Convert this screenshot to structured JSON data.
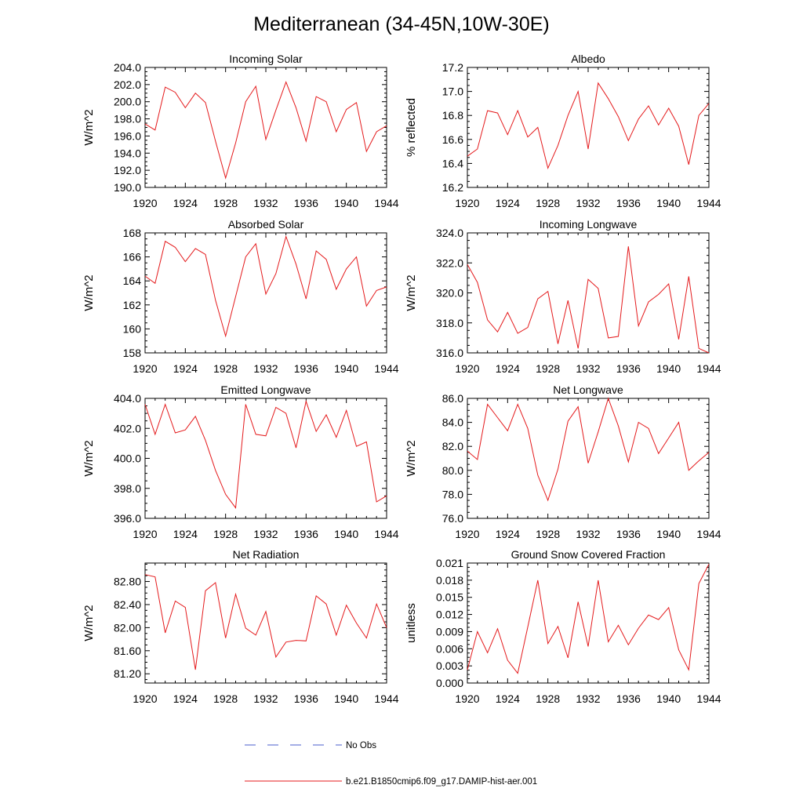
{
  "title": "Mediterranean (34-45N,10W-30E)",
  "legend": {
    "entries": [
      {
        "label": "No Obs",
        "color": "#4a5ccc",
        "dash": true
      },
      {
        "label": "b.e21.B1850cmip6.f09_g17.DAMIP-hist-aer.001",
        "color": "#e41a1c",
        "dash": false
      }
    ]
  },
  "chart_data": [
    {
      "type": "line",
      "title": "Incoming Solar",
      "ylabel": "W/m^2",
      "x": [
        1920,
        1921,
        1922,
        1923,
        1924,
        1925,
        1926,
        1927,
        1928,
        1929,
        1930,
        1931,
        1932,
        1933,
        1934,
        1935,
        1936,
        1937,
        1938,
        1939,
        1940,
        1941,
        1942,
        1943,
        1944
      ],
      "xlim": [
        1920,
        1944
      ],
      "xticks": [
        "1920",
        "1924",
        "1928",
        "1932",
        "1936",
        "1940",
        "1944"
      ],
      "ylim": [
        190.0,
        204.0
      ],
      "yticks": [
        "190.0",
        "192.0",
        "194.0",
        "196.0",
        "198.0",
        "200.0",
        "202.0",
        "204.0"
      ],
      "series": [
        {
          "color": "#e41a1c",
          "values": [
            197.4,
            196.7,
            201.7,
            201.1,
            199.3,
            201.0,
            199.9,
            195.4,
            191.1,
            195.2,
            200.0,
            201.8,
            195.6,
            199.0,
            202.3,
            199.3,
            195.4,
            200.6,
            200.0,
            196.5,
            199.1,
            199.9,
            194.2,
            196.5,
            197.2
          ]
        }
      ]
    },
    {
      "type": "line",
      "title": "Albedo",
      "ylabel": "% reflected",
      "x": [
        1920,
        1921,
        1922,
        1923,
        1924,
        1925,
        1926,
        1927,
        1928,
        1929,
        1930,
        1931,
        1932,
        1933,
        1934,
        1935,
        1936,
        1937,
        1938,
        1939,
        1940,
        1941,
        1942,
        1943,
        1944
      ],
      "xlim": [
        1920,
        1944
      ],
      "xticks": [
        "1920",
        "1924",
        "1928",
        "1932",
        "1936",
        "1940",
        "1944"
      ],
      "ylim": [
        16.2,
        17.2
      ],
      "yticks": [
        "16.2",
        "16.4",
        "16.6",
        "16.8",
        "17.0",
        "17.2"
      ],
      "series": [
        {
          "color": "#e41a1c",
          "values": [
            16.46,
            16.52,
            16.84,
            16.82,
            16.64,
            16.84,
            16.62,
            16.7,
            16.36,
            16.55,
            16.8,
            17.0,
            16.52,
            17.07,
            16.94,
            16.79,
            16.59,
            16.77,
            16.88,
            16.72,
            16.86,
            16.71,
            16.39,
            16.8,
            16.9
          ]
        }
      ]
    },
    {
      "type": "line",
      "title": "Absorbed Solar",
      "ylabel": "W/m^2",
      "x": [
        1920,
        1921,
        1922,
        1923,
        1924,
        1925,
        1926,
        1927,
        1928,
        1929,
        1930,
        1931,
        1932,
        1933,
        1934,
        1935,
        1936,
        1937,
        1938,
        1939,
        1940,
        1941,
        1942,
        1943,
        1944
      ],
      "xlim": [
        1920,
        1944
      ],
      "xticks": [
        "1920",
        "1924",
        "1928",
        "1932",
        "1936",
        "1940",
        "1944"
      ],
      "ylim": [
        158,
        168
      ],
      "yticks": [
        "158",
        "160",
        "162",
        "164",
        "166",
        "168"
      ],
      "series": [
        {
          "color": "#e41a1c",
          "values": [
            164.4,
            163.8,
            167.3,
            166.8,
            165.6,
            166.7,
            166.2,
            162.4,
            159.4,
            162.7,
            166.0,
            167.1,
            162.9,
            164.6,
            167.7,
            165.4,
            162.5,
            166.5,
            165.8,
            163.3,
            165.0,
            166.0,
            161.9,
            163.2,
            163.5
          ]
        }
      ]
    },
    {
      "type": "line",
      "title": "Incoming Longwave",
      "ylabel": "W/m^2",
      "x": [
        1920,
        1921,
        1922,
        1923,
        1924,
        1925,
        1926,
        1927,
        1928,
        1929,
        1930,
        1931,
        1932,
        1933,
        1934,
        1935,
        1936,
        1937,
        1938,
        1939,
        1940,
        1941,
        1942,
        1943,
        1944
      ],
      "xlim": [
        1920,
        1944
      ],
      "xticks": [
        "1920",
        "1924",
        "1928",
        "1932",
        "1936",
        "1940",
        "1944"
      ],
      "ylim": [
        316.0,
        324.0
      ],
      "yticks": [
        "316.0",
        "318.0",
        "320.0",
        "322.0",
        "324.0"
      ],
      "series": [
        {
          "color": "#e41a1c",
          "values": [
            321.9,
            320.7,
            318.2,
            317.4,
            318.7,
            317.3,
            317.7,
            319.6,
            320.1,
            316.6,
            319.5,
            316.3,
            320.9,
            320.3,
            317.0,
            317.1,
            323.1,
            317.8,
            319.4,
            319.9,
            320.6,
            316.9,
            321.1,
            316.3,
            316.0
          ]
        }
      ]
    },
    {
      "type": "line",
      "title": "Emitted Longwave",
      "ylabel": "W/m^2",
      "x": [
        1920,
        1921,
        1922,
        1923,
        1924,
        1925,
        1926,
        1927,
        1928,
        1929,
        1930,
        1931,
        1932,
        1933,
        1934,
        1935,
        1936,
        1937,
        1938,
        1939,
        1940,
        1941,
        1942,
        1943,
        1944
      ],
      "xlim": [
        1920,
        1944
      ],
      "xticks": [
        "1920",
        "1924",
        "1928",
        "1932",
        "1936",
        "1940",
        "1944"
      ],
      "ylim": [
        396.0,
        404.0
      ],
      "yticks": [
        "396.0",
        "398.0",
        "400.0",
        "402.0",
        "404.0"
      ],
      "series": [
        {
          "color": "#e41a1c",
          "values": [
            403.6,
            401.6,
            403.6,
            401.7,
            401.9,
            402.8,
            401.2,
            399.2,
            397.6,
            396.7,
            403.6,
            401.6,
            401.5,
            403.4,
            403.0,
            400.7,
            403.8,
            401.8,
            402.9,
            401.4,
            403.2,
            400.8,
            401.1,
            397.1,
            397.5
          ]
        }
      ]
    },
    {
      "type": "line",
      "title": "Net Longwave",
      "ylabel": "W/m^2",
      "x": [
        1920,
        1921,
        1922,
        1923,
        1924,
        1925,
        1926,
        1927,
        1928,
        1929,
        1930,
        1931,
        1932,
        1933,
        1934,
        1935,
        1936,
        1937,
        1938,
        1939,
        1940,
        1941,
        1942,
        1943,
        1944
      ],
      "xlim": [
        1920,
        1944
      ],
      "xticks": [
        "1920",
        "1924",
        "1928",
        "1932",
        "1936",
        "1940",
        "1944"
      ],
      "ylim": [
        76.0,
        86.0
      ],
      "yticks": [
        "76.0",
        "78.0",
        "80.0",
        "82.0",
        "84.0",
        "86.0"
      ],
      "series": [
        {
          "color": "#e41a1c",
          "values": [
            81.6,
            80.9,
            85.5,
            84.4,
            83.3,
            85.5,
            83.5,
            79.6,
            77.5,
            80.1,
            84.1,
            85.3,
            80.6,
            83.2,
            86.0,
            83.7,
            80.7,
            84.0,
            83.5,
            81.4,
            82.7,
            84.0,
            80.0,
            80.8,
            81.5
          ]
        }
      ]
    },
    {
      "type": "line",
      "title": "Net Radiation",
      "ylabel": "W/m^2",
      "x": [
        1920,
        1921,
        1922,
        1923,
        1924,
        1925,
        1926,
        1927,
        1928,
        1929,
        1930,
        1931,
        1932,
        1933,
        1934,
        1935,
        1936,
        1937,
        1938,
        1939,
        1940,
        1941,
        1942,
        1943,
        1944
      ],
      "xlim": [
        1920,
        1944
      ],
      "xticks": [
        "1920",
        "1924",
        "1928",
        "1932",
        "1936",
        "1940",
        "1944"
      ],
      "ylim": [
        81.04,
        83.12
      ],
      "yticks": [
        "81.20",
        "81.60",
        "82.00",
        "82.40",
        "82.80"
      ],
      "series": [
        {
          "color": "#e41a1c",
          "values": [
            82.92,
            82.88,
            81.91,
            82.46,
            82.35,
            81.27,
            82.64,
            82.78,
            81.82,
            82.58,
            81.99,
            81.87,
            82.28,
            81.49,
            81.75,
            81.78,
            81.77,
            82.55,
            82.41,
            81.87,
            82.39,
            82.08,
            81.82,
            82.41,
            82.0
          ]
        }
      ]
    },
    {
      "type": "line",
      "title": "Ground Snow Covered Fraction",
      "ylabel": "unitless",
      "x": [
        1920,
        1921,
        1922,
        1923,
        1924,
        1925,
        1926,
        1927,
        1928,
        1929,
        1930,
        1931,
        1932,
        1933,
        1934,
        1935,
        1936,
        1937,
        1938,
        1939,
        1940,
        1941,
        1942,
        1943,
        1944
      ],
      "xlim": [
        1920,
        1944
      ],
      "xticks": [
        "1920",
        "1924",
        "1928",
        "1932",
        "1936",
        "1940",
        "1944"
      ],
      "ylim": [
        0.0,
        0.021
      ],
      "yticks": [
        "0.000",
        "0.003",
        "0.006",
        "0.009",
        "0.012",
        "0.015",
        "0.018",
        "0.021"
      ],
      "series": [
        {
          "color": "#e41a1c",
          "values": [
            0.0023,
            0.009,
            0.0053,
            0.0095,
            0.004,
            0.0017,
            0.0098,
            0.018,
            0.0069,
            0.0099,
            0.0044,
            0.0142,
            0.0064,
            0.018,
            0.0072,
            0.0101,
            0.0067,
            0.0096,
            0.0119,
            0.0111,
            0.0132,
            0.0058,
            0.0023,
            0.0174,
            0.0208
          ]
        }
      ]
    }
  ]
}
